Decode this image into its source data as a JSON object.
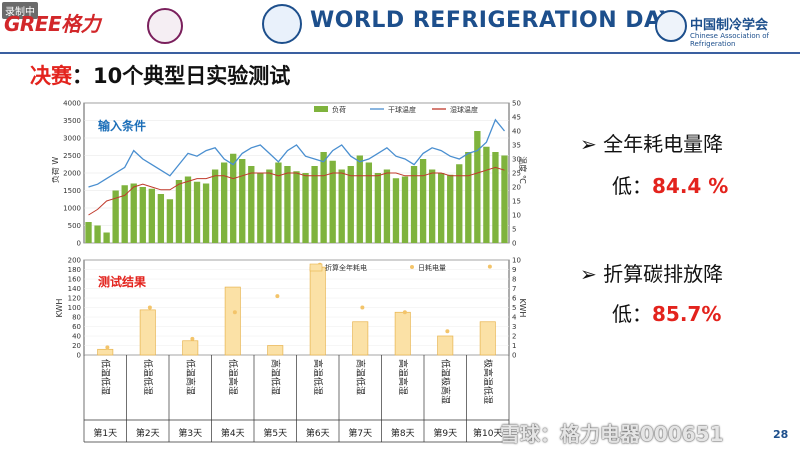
{
  "header": {
    "rec_tag": "录制中",
    "gree_logo_text": "GREE格力",
    "wrd_title": "WORLD REFRIGERATION DAY",
    "car_cn": "中国制冷学会",
    "car_en": "Chinese Association of Refrigeration"
  },
  "title": {
    "prefix": "决赛",
    "rest": "：10个典型日实验测试"
  },
  "bullets": [
    {
      "text": "全年耗电量降",
      "line2": "低：",
      "value": "84.4 %"
    },
    {
      "text": "折算碳排放降",
      "line2": "低：",
      "value": "85.7%"
    }
  ],
  "watermark": "雪球：格力电器000651",
  "page_number": "28",
  "chart_data": [
    {
      "type": "bar+line",
      "panel_label": "输入条件",
      "legend": [
        "负荷",
        "干球温度",
        "湿球温度"
      ],
      "ylabel": "负荷 W",
      "y2label": "温度 ℃",
      "ylim": [
        0,
        4000
      ],
      "y2lim": [
        0,
        50
      ],
      "yticks": [
        0,
        500,
        1000,
        1500,
        2000,
        2500,
        3000,
        3500,
        4000
      ],
      "y2ticks": [
        0,
        5,
        10,
        15,
        20,
        25,
        30,
        35,
        40,
        45,
        50
      ],
      "colors": {
        "load": "#7fb33d",
        "dry_bulb": "#4a8fd0",
        "wet_bulb": "#c0392b"
      },
      "load": [
        600,
        500,
        300,
        1500,
        1650,
        1700,
        1600,
        1550,
        1400,
        1250,
        1800,
        1900,
        1750,
        1700,
        2100,
        2300,
        2550,
        2400,
        2200,
        2000,
        2100,
        2300,
        2200,
        2050,
        2000,
        2200,
        2600,
        2350,
        2100,
        2200,
        2500,
        2300,
        2000,
        2100,
        1850,
        1900,
        2200,
        2400,
        2100,
        2000,
        1950,
        2250,
        2600,
        3200,
        2750,
        2600,
        2500
      ],
      "dry_bulb": [
        20,
        21,
        23,
        25,
        27,
        33,
        30,
        28,
        26,
        24,
        28,
        32,
        31,
        33,
        34,
        30,
        28,
        32,
        34,
        35,
        32,
        29,
        33,
        35,
        31,
        30,
        29,
        33,
        35,
        31,
        29,
        30,
        32,
        34,
        31,
        30,
        28,
        32,
        34,
        33,
        31,
        30,
        32,
        33,
        36,
        44,
        40
      ],
      "wet_bulb": [
        10,
        12,
        15,
        16,
        17,
        20,
        21,
        20,
        19,
        19,
        21,
        22,
        23,
        23,
        24,
        24,
        23,
        24,
        25,
        25,
        25,
        24,
        25,
        25,
        24,
        24,
        24,
        25,
        25,
        24,
        24,
        24,
        24,
        25,
        25,
        24,
        24,
        24,
        25,
        25,
        24,
        24,
        24,
        25,
        26,
        27,
        26
      ]
    },
    {
      "type": "bar+scatter",
      "panel_label": "测试结果",
      "legend": [
        "折算全年耗电",
        "日耗电量"
      ],
      "ylabel": "KWH",
      "y2label": "KWH",
      "ylim": [
        0,
        200
      ],
      "y2lim": [
        0,
        10
      ],
      "yticks": [
        0,
        20,
        40,
        60,
        80,
        100,
        120,
        140,
        160,
        180,
        200
      ],
      "y2ticks": [
        0,
        1,
        2,
        3,
        4,
        5,
        6,
        7,
        8,
        9,
        10
      ],
      "categories": [
        "低温低湿",
        "低温低湿",
        "低温高湿",
        "低温高湿",
        "高温低湿",
        "高温低湿",
        "高温低湿",
        "高温高湿",
        "低温极高湿",
        "极高温低湿"
      ],
      "x_labels": [
        "第1天",
        "第2天",
        "第3天",
        "第4天",
        "第5天",
        "第6天",
        "第7天",
        "第8天",
        "第9天",
        "第10天"
      ],
      "annual_kwh": [
        12,
        95,
        30,
        143,
        20,
        185,
        70,
        90,
        40,
        70
      ],
      "daily_kwh": [
        0.8,
        5,
        1.7,
        4.5,
        6.2,
        9.5,
        5,
        4.5,
        2.5,
        9.3
      ],
      "colors": {
        "bar_fill": "#fbe1a6",
        "bar_stroke": "#e8b44e",
        "dot": "#f3c46a"
      }
    }
  ]
}
